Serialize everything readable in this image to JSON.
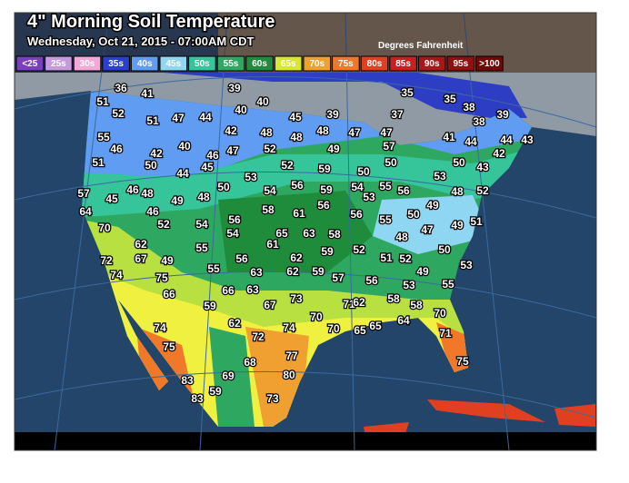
{
  "header": {
    "title": "4\" Morning Soil Temperature",
    "subtitle": "Wednesday, Oct 21, 2015 - 07:00AM CDT",
    "units": "Degrees Fahrenheit"
  },
  "legend": {
    "items": [
      {
        "label": "<25",
        "color": "#7a3fc0"
      },
      {
        "label": "25s",
        "color": "#c79ae0"
      },
      {
        "label": "30s",
        "color": "#f2a9d8"
      },
      {
        "label": "35s",
        "color": "#2a3fd0"
      },
      {
        "label": "40s",
        "color": "#5f9cf2"
      },
      {
        "label": "45s",
        "color": "#8fd6f2"
      },
      {
        "label": "50s",
        "color": "#36c49a"
      },
      {
        "label": "55s",
        "color": "#2ea860"
      },
      {
        "label": "60s",
        "color": "#1f8c3c"
      },
      {
        "label": "65s",
        "color": "#d8e830"
      },
      {
        "label": "70s",
        "color": "#f0a030"
      },
      {
        "label": "75s",
        "color": "#f07828"
      },
      {
        "label": "80s",
        "color": "#e04020"
      },
      {
        "label": "85s",
        "color": "#c82020"
      },
      {
        "label": "90s",
        "color": "#a81818"
      },
      {
        "label": "95s",
        "color": "#901010"
      },
      {
        "label": ">100",
        "color": "#700808"
      }
    ]
  },
  "stations": [
    36,
    41,
    51,
    52,
    51,
    47,
    44,
    39,
    40,
    40,
    35,
    35,
    38,
    37,
    38,
    39,
    45,
    39,
    55,
    46,
    42,
    40,
    42,
    48,
    48,
    52,
    47,
    46,
    48,
    47,
    47,
    41,
    44,
    44,
    43,
    51,
    50,
    44,
    45,
    52,
    59,
    49,
    50,
    57,
    50,
    53,
    50,
    43,
    42,
    57,
    45,
    46,
    48,
    49,
    48,
    50,
    53,
    54,
    56,
    59,
    54,
    53,
    55,
    56,
    48,
    52,
    64,
    46,
    52,
    54,
    56,
    54,
    58,
    61,
    56,
    56,
    55,
    50,
    49,
    48,
    47,
    49,
    51,
    70,
    62,
    65,
    63,
    58,
    52,
    61,
    62,
    59,
    55,
    72,
    67,
    49,
    50,
    53,
    74,
    75,
    55,
    56,
    63,
    62,
    59,
    57,
    56,
    51,
    52,
    49,
    55,
    66,
    66,
    63,
    59,
    67,
    73,
    71,
    62,
    58,
    53,
    58,
    62,
    70,
    70,
    65,
    65,
    64,
    70,
    74,
    74,
    72,
    71,
    75,
    77,
    75,
    68,
    69,
    83,
    80,
    59,
    83,
    73
  ]
}
